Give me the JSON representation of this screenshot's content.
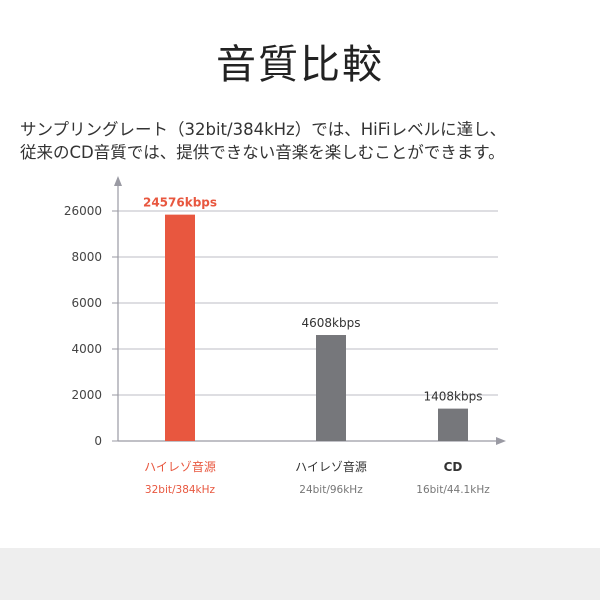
{
  "page": {
    "title": "音質比較",
    "description_lines": [
      "サンプリングレート（32bit/384kHz）では、HiFiレベルに達し、",
      "従来のCD音質では、提供できない音楽を楽しむことができます。"
    ]
  },
  "colors": {
    "highlight": "#e8573f",
    "bar_gray": "#76777b",
    "axis": "#9a9aa3",
    "grid": "#bdbdc4",
    "label_dark": "#333333",
    "sub_label": "#777777"
  },
  "chart_data": {
    "type": "bar",
    "title": "",
    "xlabel": "",
    "ylabel": "",
    "y_ticks": [
      {
        "value": 0,
        "label": "0"
      },
      {
        "value": 2000,
        "label": "2000"
      },
      {
        "value": 4000,
        "label": "4000"
      },
      {
        "value": 6000,
        "label": "6000"
      },
      {
        "value": 8000,
        "label": "8000"
      },
      {
        "value": 26000,
        "label": "26000"
      }
    ],
    "grid": true,
    "bars": [
      {
        "category": "ハイレゾ音源",
        "sublabel": "32bit/384kHz",
        "value": 24576,
        "data_label": "24576kbps",
        "highlight": true
      },
      {
        "category": "ハイレゾ音源",
        "sublabel": "24bit/96kHz",
        "value": 4608,
        "data_label": "4608kbps",
        "highlight": false
      },
      {
        "category": "CD",
        "sublabel": "16bit/44.1kHz",
        "value": 1408,
        "data_label": "1408kbps",
        "highlight": false
      }
    ]
  }
}
